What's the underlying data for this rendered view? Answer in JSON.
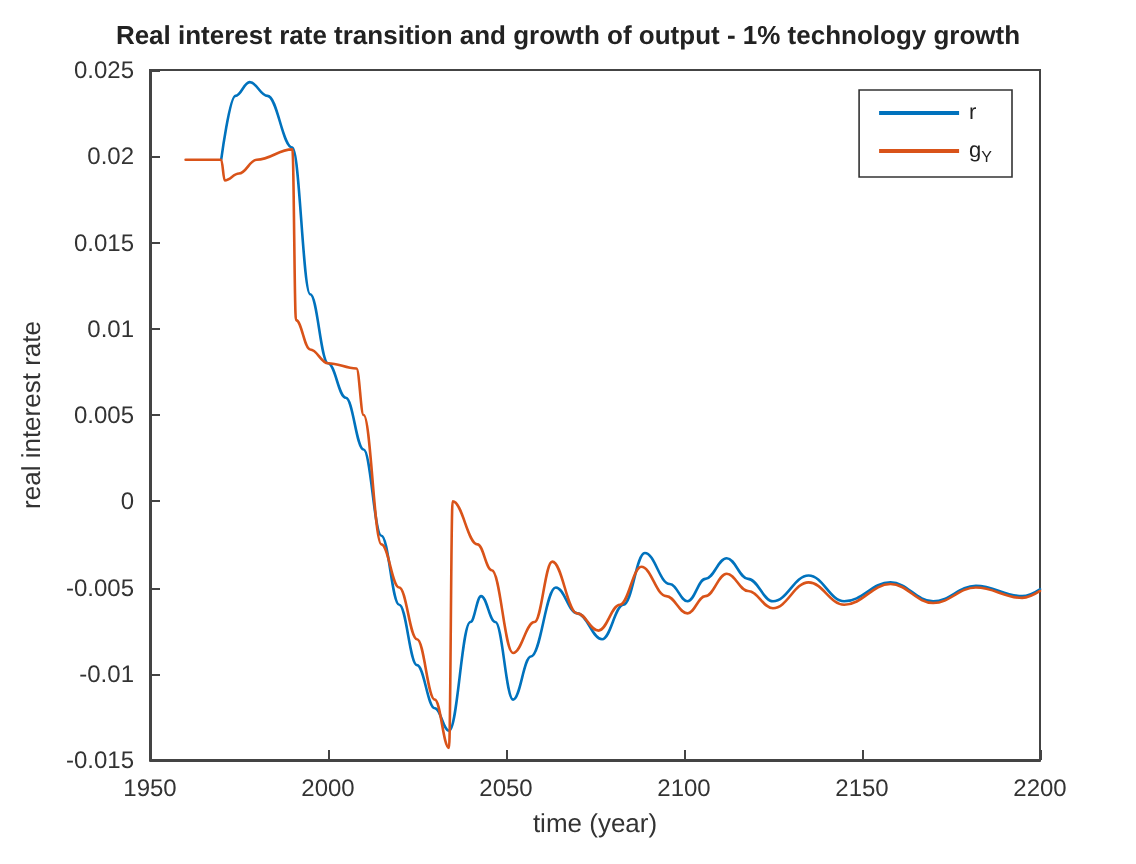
{
  "chart_data": {
    "type": "line",
    "title": "Real interest rate transition and growth of output - 1% technology growth",
    "xlabel": "time (year)",
    "ylabel": "real interest rate",
    "xlim": [
      1950,
      2200
    ],
    "xticks": [
      1950,
      2000,
      2050,
      2100,
      2150,
      2200
    ],
    "ylim": [
      -0.015,
      0.025
    ],
    "yticks": [
      -0.015,
      -0.01,
      -0.005,
      0,
      0.005,
      0.01,
      0.015,
      0.02,
      0.025
    ],
    "grid": false,
    "legend": "top right",
    "marker": "none",
    "line_style": "solid",
    "series": [
      {
        "name": "r",
        "color": "#0072bd",
        "x": [
          1970,
          1974,
          1978,
          1983,
          1990,
          1995,
          2000,
          2005,
          2010,
          2015,
          2020,
          2025,
          2030,
          2034,
          2040,
          2043,
          2047,
          2052,
          2057,
          2064,
          2070,
          2077,
          2083,
          2089,
          2096,
          2101,
          2106,
          2112,
          2118,
          2125,
          2135,
          2145,
          2158,
          2170,
          2182,
          2195,
          2200
        ],
        "values": [
          0.0198,
          0.0235,
          0.0243,
          0.0235,
          0.0205,
          0.012,
          0.008,
          0.006,
          0.003,
          -0.002,
          -0.006,
          -0.0095,
          -0.012,
          -0.0133,
          -0.007,
          -0.0055,
          -0.007,
          -0.0115,
          -0.009,
          -0.005,
          -0.0065,
          -0.008,
          -0.006,
          -0.003,
          -0.0048,
          -0.0058,
          -0.0045,
          -0.0033,
          -0.0045,
          -0.0058,
          -0.0043,
          -0.0058,
          -0.0047,
          -0.0058,
          -0.0049,
          -0.0055,
          -0.0051
        ]
      },
      {
        "name": "g$_{Y}$",
        "color": "#d95319",
        "x": [
          1960,
          1970,
          1971,
          1975,
          1980,
          1990,
          1991,
          1995,
          2000,
          2008,
          2010,
          2015,
          2020,
          2025,
          2030,
          2034,
          2035,
          2042,
          2046,
          2052,
          2058,
          2063,
          2070,
          2076,
          2082,
          2088,
          2095,
          2101,
          2106,
          2112,
          2118,
          2125,
          2135,
          2145,
          2158,
          2170,
          2182,
          2195,
          2200
        ],
        "values": [
          0.0198,
          0.0198,
          0.0186,
          0.019,
          0.0198,
          0.0204,
          0.0105,
          0.0088,
          0.008,
          0.0077,
          0.005,
          -0.0025,
          -0.005,
          -0.008,
          -0.0115,
          -0.0143,
          0.0,
          -0.0025,
          -0.004,
          -0.0088,
          -0.007,
          -0.0035,
          -0.0065,
          -0.0075,
          -0.006,
          -0.0038,
          -0.0055,
          -0.0065,
          -0.0055,
          -0.0042,
          -0.0052,
          -0.0062,
          -0.0047,
          -0.006,
          -0.0048,
          -0.0059,
          -0.005,
          -0.0056,
          -0.0052
        ]
      }
    ]
  }
}
